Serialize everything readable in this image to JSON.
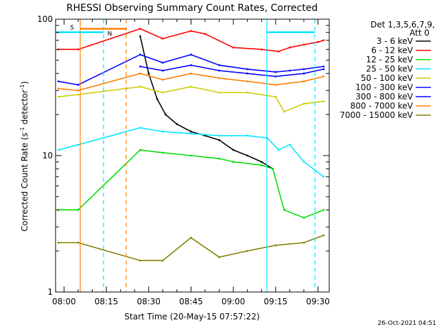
{
  "chart_data": {
    "type": "line",
    "title": "RHESSI Observing Summary Count Rates, Corrected",
    "xlabel": "Start Time (20-May-15 07:57:22)",
    "ylabel_main": "Corrected Count Rate (s",
    "ylabel_sup1": "-1",
    "ylabel_mid": " detector",
    "ylabel_sup2": "-1",
    "ylabel_end": ")",
    "y_scale": "log",
    "ylim": [
      1,
      100
    ],
    "xlim": [
      "07:57",
      "09:34"
    ],
    "x_tick_labels": [
      "08:00",
      "08:15",
      "08:30",
      "08:45",
      "09:00",
      "09:15",
      "09:30"
    ],
    "y_tick_labels": [
      "1",
      "10",
      "100"
    ],
    "legend_header": [
      "Det 1,3,5,6,7,9,",
      "Att 0"
    ],
    "legend_position": "right",
    "timestamp": "26-Oct-2021 04:51",
    "markers": [
      {
        "label": "S",
        "color": "#ff7f00"
      },
      {
        "label": "N",
        "color": "#00e5ff"
      }
    ],
    "colors": {
      "s_marker": "#ff7f00",
      "n_marker": "#00e5ff",
      "axes": "#000000",
      "background": "#ffffff"
    },
    "series": [
      {
        "name": "3 - 6 keV",
        "color": "#000000",
        "x": [
          "08:27",
          "08:30",
          "08:33",
          "08:36",
          "08:40",
          "08:45",
          "08:50",
          "08:55",
          "09:00",
          "09:05",
          "09:10",
          "09:14"
        ],
        "y": [
          75,
          40,
          26,
          20,
          17,
          15,
          14,
          13,
          11,
          10,
          9,
          8
        ]
      },
      {
        "name": "6 - 12 keV",
        "color": "#ff0000",
        "x": [
          "07:58",
          "08:05",
          "08:27",
          "08:35",
          "08:45",
          "08:50",
          "09:00",
          "09:10",
          "09:16",
          "09:20",
          "09:25",
          "09:30",
          "09:32"
        ],
        "y": [
          60,
          60,
          85,
          72,
          82,
          78,
          62,
          60,
          58,
          62,
          65,
          68,
          70
        ]
      },
      {
        "name": "12 - 25 keV",
        "color": "#00dd00",
        "x": [
          "07:58",
          "08:05",
          "08:27",
          "08:35",
          "08:45",
          "08:55",
          "09:00",
          "09:10",
          "09:14",
          "09:18",
          "09:25",
          "09:32"
        ],
        "y": [
          4.0,
          4.0,
          11,
          10.5,
          10,
          9.5,
          9,
          8.5,
          8,
          4.0,
          3.5,
          4.0
        ]
      },
      {
        "name": "25 - 50 keV",
        "color": "#00e5ff",
        "x": [
          "07:58",
          "08:05",
          "08:27",
          "08:35",
          "08:45",
          "08:55",
          "09:05",
          "09:12",
          "09:16",
          "09:20",
          "09:25",
          "09:32"
        ],
        "y": [
          11,
          12,
          16,
          15,
          14.5,
          14,
          14,
          13.5,
          11,
          12,
          9,
          7
        ]
      },
      {
        "name": "50 - 100 keV",
        "color": "#cccc00",
        "x": [
          "07:58",
          "08:05",
          "08:27",
          "08:35",
          "08:45",
          "08:55",
          "09:05",
          "09:15",
          "09:18",
          "09:25",
          "09:32"
        ],
        "y": [
          27,
          28,
          32,
          29,
          32,
          29,
          29,
          27,
          21,
          24,
          25
        ]
      },
      {
        "name": "100 - 300 keV",
        "color": "#0000ff",
        "x": [
          "07:58",
          "08:05",
          "08:27",
          "08:35",
          "08:45",
          "08:55",
          "09:05",
          "09:15",
          "09:20",
          "09:25",
          "09:32"
        ],
        "y": [
          35,
          33,
          55,
          48,
          55,
          46,
          43,
          41,
          42,
          43,
          45
        ]
      },
      {
        "name": "300 - 800 keV",
        "color": "#0000ff",
        "x": [
          "08:27",
          "08:35",
          "08:45",
          "08:55",
          "09:05",
          "09:15",
          "09:25",
          "09:32"
        ],
        "y": [
          45,
          42,
          46,
          42,
          40,
          38,
          40,
          43
        ]
      },
      {
        "name": "800 - 7000 keV",
        "color": "#ff7f00",
        "x": [
          "07:58",
          "08:05",
          "08:27",
          "08:35",
          "08:45",
          "08:55",
          "09:05",
          "09:15",
          "09:25",
          "09:32"
        ],
        "y": [
          31,
          30,
          40,
          36,
          40,
          37,
          35,
          33,
          35,
          38
        ]
      },
      {
        "name": "7000 - 15000 keV",
        "color": "#808000",
        "x": [
          "07:58",
          "08:05",
          "08:27",
          "08:35",
          "08:45",
          "08:55",
          "09:05",
          "09:15",
          "09:25",
          "09:32"
        ],
        "y": [
          2.3,
          2.3,
          1.7,
          1.7,
          2.5,
          1.8,
          2.0,
          2.2,
          2.3,
          2.6
        ]
      }
    ]
  }
}
